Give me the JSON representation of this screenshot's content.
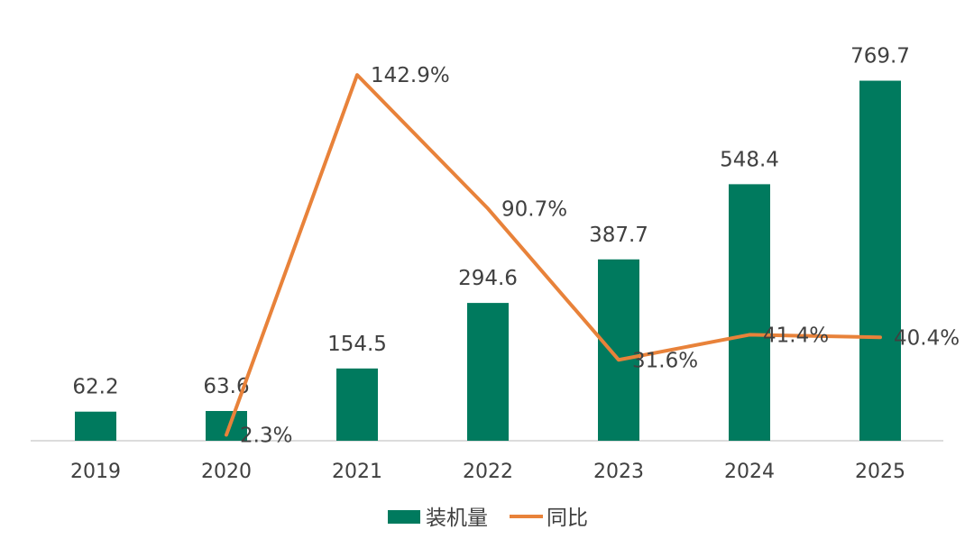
{
  "chart_data": {
    "type": "bar+line",
    "categories": [
      "2019",
      "2020",
      "2021",
      "2022",
      "2023",
      "2024",
      "2025"
    ],
    "series": [
      {
        "name": "装机量",
        "type": "bar",
        "values": [
          62.2,
          63.6,
          154.5,
          294.6,
          387.7,
          548.4,
          769.7
        ],
        "labels": [
          "62.2",
          "63.6",
          "154.5",
          "294.6",
          "387.7",
          "548.4",
          "769.7"
        ],
        "color": "#007a5e"
      },
      {
        "name": "同比",
        "type": "line",
        "x": [
          "2020",
          "2021",
          "2022",
          "2023",
          "2024",
          "2025"
        ],
        "values": [
          2.3,
          142.9,
          90.7,
          31.6,
          41.4,
          40.4
        ],
        "labels": [
          "2.3%",
          "142.9%",
          "90.7%",
          "31.6%",
          "41.4%",
          "40.4%"
        ],
        "color": "#e8823a"
      }
    ],
    "legend": [
      "装机量",
      "同比"
    ],
    "legend_position": "bottom",
    "grid": false
  }
}
